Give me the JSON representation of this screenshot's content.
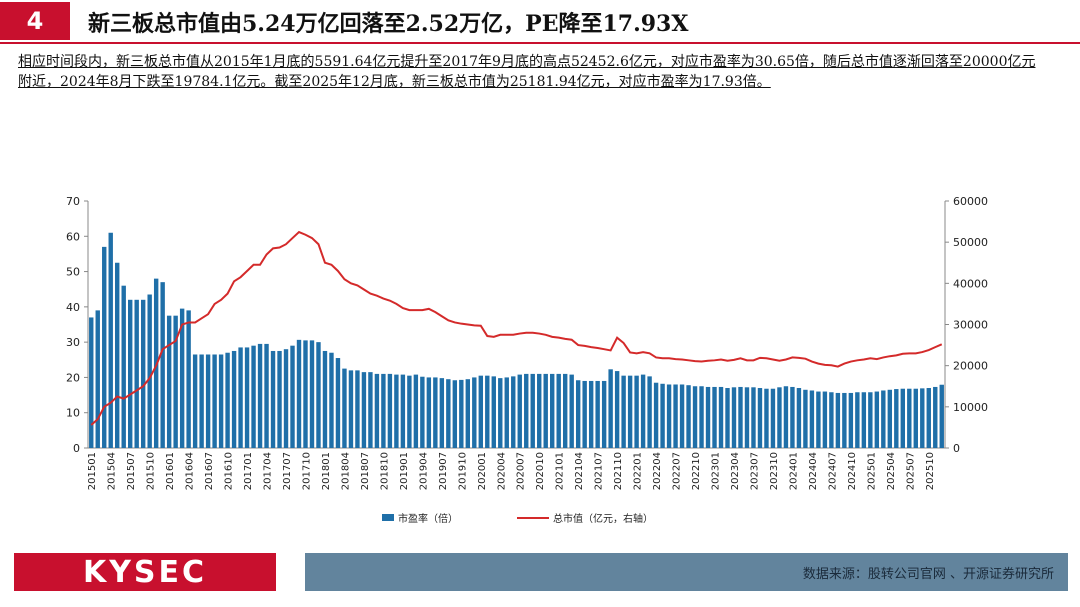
{
  "header": {
    "number": "4",
    "title": "新三板总市值由5.24万亿回落至2.52万亿，PE降至17.93X"
  },
  "description": "相应时间段内，新三板总市值从2015年1月底的5591.64亿元提升至2017年9月底的高点52452.6亿元，对应市盈率为30.65倍，随后总市值逐渐回落至20000亿元附近，2024年8月下跌至19784.1亿元。截至2025年12月底，新三板总市值为25181.94亿元，对应市盈率为17.93倍。",
  "chart_data": {
    "type": "combo",
    "categories": [
      "201501",
      null,
      null,
      "201504",
      null,
      null,
      "201507",
      null,
      null,
      "201510",
      null,
      null,
      "201601",
      null,
      null,
      "201604",
      null,
      null,
      "201607",
      null,
      null,
      "201610",
      null,
      null,
      "201701",
      null,
      null,
      "201704",
      null,
      null,
      "201707",
      null,
      null,
      "201710",
      null,
      null,
      "201801",
      null,
      null,
      "201804",
      null,
      null,
      "201807",
      null,
      null,
      "201810",
      null,
      null,
      "201901",
      null,
      null,
      "201904",
      null,
      null,
      "201907",
      null,
      null,
      "201910",
      null,
      null,
      "202001",
      null,
      null,
      "202004",
      null,
      null,
      "202007",
      null,
      null,
      "202010",
      null,
      null,
      "202101",
      null,
      null,
      "202104",
      null,
      null,
      "202107",
      null,
      null,
      "202110",
      null,
      null,
      "202201",
      null,
      null,
      "202204",
      null,
      null,
      "202207",
      null,
      null,
      "202210",
      null,
      null,
      "202301",
      null,
      null,
      "202304",
      null,
      null,
      "202307",
      null,
      null,
      "202310",
      null,
      null,
      "202401",
      null,
      null,
      "202404",
      null,
      null,
      "202407",
      null,
      null,
      "202410",
      null,
      null,
      "202501",
      null,
      null,
      "202504",
      null,
      null,
      "202507",
      null,
      null,
      "202510",
      null,
      null
    ],
    "series": [
      {
        "name": "市盈率（倍）",
        "type": "bar",
        "color": "#1f6fa8",
        "values": [
          37,
          39,
          57,
          61,
          52.5,
          46,
          42,
          42,
          42,
          43.5,
          48,
          47,
          37.5,
          37.5,
          39.5,
          39,
          26.5,
          26.5,
          26.5,
          26.5,
          26.5,
          27,
          27.5,
          28.5,
          28.5,
          29,
          29.5,
          29.5,
          27.5,
          27.5,
          28,
          29,
          30.65,
          30.5,
          30.5,
          30,
          27.5,
          27,
          25.5,
          22.5,
          22,
          22,
          21.5,
          21.5,
          21,
          21,
          21,
          20.8,
          20.8,
          20.5,
          20.8,
          20.2,
          20,
          20,
          19.8,
          19.5,
          19.2,
          19.3,
          19.5,
          20,
          20.5,
          20.5,
          20.3,
          19.8,
          20,
          20.3,
          20.8,
          21,
          21,
          21,
          21,
          21,
          21,
          21,
          20.8,
          19.2,
          19,
          19,
          19,
          19,
          22.3,
          21.8,
          20.5,
          20.5,
          20.5,
          20.8,
          20.3,
          18.5,
          18.2,
          18,
          18,
          18,
          17.8,
          17.5,
          17.5,
          17.3,
          17.3,
          17.3,
          17,
          17.2,
          17.3,
          17.2,
          17.2,
          17,
          16.8,
          16.8,
          17.2,
          17.5,
          17.3,
          17,
          16.5,
          16.3,
          16,
          16,
          15.8,
          15.6,
          15.6,
          15.6,
          15.8,
          15.8,
          15.8,
          16,
          16.3,
          16.5,
          16.7,
          16.8,
          16.8,
          16.8,
          16.9,
          17,
          17.3,
          17.93
        ]
      },
      {
        "name": "总市值（亿元，右轴）",
        "type": "line",
        "axis": "y2",
        "color": "#d42a2a",
        "values": [
          5591.64,
          7000,
          10000,
          11000,
          12500,
          12000,
          13000,
          14000,
          15000,
          17000,
          20000,
          24000,
          25000,
          26000,
          30000,
          30500,
          30500,
          31500,
          32500,
          35000,
          36000,
          37500,
          40500,
          41500,
          43000,
          44500,
          44500,
          47000,
          48500,
          48700,
          49500,
          51000,
          52452.6,
          51800,
          51000,
          49500,
          45000,
          44500,
          43000,
          41000,
          40000,
          39500,
          38500,
          37500,
          37000,
          36300,
          35800,
          35000,
          34000,
          33500,
          33500,
          33500,
          33800,
          33000,
          32000,
          31000,
          30500,
          30200,
          30000,
          29800,
          29700,
          27200,
          27000,
          27500,
          27500,
          27500,
          27800,
          28000,
          28000,
          27800,
          27500,
          27000,
          26800,
          26500,
          26300,
          25000,
          24800,
          24500,
          24300,
          24000,
          23700,
          26800,
          25500,
          23200,
          23000,
          23300,
          23000,
          22000,
          21800,
          21800,
          21600,
          21500,
          21300,
          21100,
          21000,
          21200,
          21300,
          21500,
          21200,
          21400,
          21800,
          21300,
          21300,
          21900,
          21800,
          21500,
          21200,
          21500,
          22000,
          21900,
          21700,
          21000,
          20500,
          20200,
          20100,
          19784.1,
          20500,
          21000,
          21300,
          21500,
          21800,
          21600,
          22000,
          22300,
          22500,
          22900,
          23000,
          23000,
          23300,
          23800,
          24500,
          25181.94
        ]
      }
    ],
    "ylim": [
      0,
      70
    ],
    "yticks": [
      0,
      10,
      20,
      30,
      40,
      50,
      60,
      70
    ],
    "y2lim": [
      0,
      60000
    ],
    "y2ticks": [
      0,
      10000,
      20000,
      30000,
      40000,
      50000,
      60000
    ]
  },
  "footer": {
    "logo": "KYSEC",
    "source": "数据来源：股转公司官网 、开源证券研究所"
  }
}
